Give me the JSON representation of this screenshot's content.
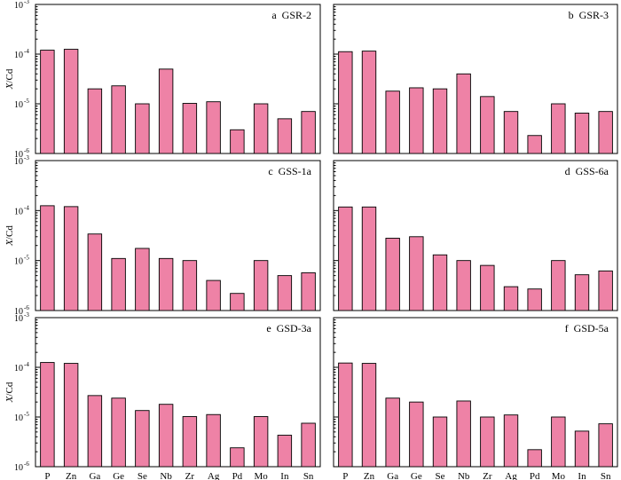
{
  "figure": {
    "ylabel": "X/Cd",
    "ytick_labels": [
      "10",
      "10",
      "10",
      "10"
    ],
    "ytick_exponents": [
      "-6",
      "-5",
      "-4",
      "-3"
    ]
  },
  "chart_data": [
    {
      "type": "bar",
      "title": "a  GSR-2",
      "categories": [
        "P",
        "Zn",
        "Ga",
        "Ge",
        "Se",
        "Nb",
        "Zr",
        "Ag",
        "Pd",
        "Mo",
        "In",
        "Sn"
      ],
      "values": [
        0.00012,
        0.000125,
        2e-05,
        2.3e-05,
        1e-05,
        5e-05,
        1.02e-05,
        1.1e-05,
        3e-06,
        1e-05,
        5e-06,
        7e-06
      ],
      "ylabel": "X/Cd",
      "ylim": [
        1e-06,
        0.001
      ],
      "yscale": "log"
    },
    {
      "type": "bar",
      "title": "b  GSR-3",
      "categories": [
        "P",
        "Zn",
        "Ga",
        "Ge",
        "Se",
        "Nb",
        "Zr",
        "Ag",
        "Pd",
        "Mo",
        "In",
        "Sn"
      ],
      "values": [
        0.000112,
        0.000115,
        1.8e-05,
        2.1e-05,
        2e-05,
        4e-05,
        1.4e-05,
        7e-06,
        2.3e-06,
        1e-05,
        6.5e-06,
        7e-06
      ],
      "ylabel": "X/Cd",
      "ylim": [
        1e-06,
        0.001
      ],
      "yscale": "log"
    },
    {
      "type": "bar",
      "title": "c  GSS-1a",
      "categories": [
        "P",
        "Zn",
        "Ga",
        "Ge",
        "Se",
        "Nb",
        "Zr",
        "Ag",
        "Pd",
        "Mo",
        "In",
        "Sn"
      ],
      "values": [
        0.000125,
        0.00012,
        3.4e-05,
        1.1e-05,
        1.75e-05,
        1.1e-05,
        1e-05,
        4e-06,
        2.2e-06,
        1e-05,
        5e-06,
        5.7e-06
      ],
      "ylabel": "X/Cd",
      "ylim": [
        1e-06,
        0.001
      ],
      "yscale": "log"
    },
    {
      "type": "bar",
      "title": "d  GSS-6a",
      "categories": [
        "P",
        "Zn",
        "Ga",
        "Ge",
        "Se",
        "Nb",
        "Zr",
        "Ag",
        "Pd",
        "Mo",
        "In",
        "Sn"
      ],
      "values": [
        0.000118,
        0.000118,
        2.8e-05,
        3e-05,
        1.3e-05,
        1e-05,
        8e-06,
        3e-06,
        2.7e-06,
        1e-05,
        5.2e-06,
        6.2e-06
      ],
      "ylabel": "X/Cd",
      "ylim": [
        1e-06,
        0.001
      ],
      "yscale": "log"
    },
    {
      "type": "bar",
      "title": "e  GSD-3a",
      "categories": [
        "P",
        "Zn",
        "Ga",
        "Ge",
        "Se",
        "Nb",
        "Zr",
        "Ag",
        "Pd",
        "Mo",
        "In",
        "Sn"
      ],
      "values": [
        0.000125,
        0.00012,
        2.7e-05,
        2.4e-05,
        1.35e-05,
        1.8e-05,
        1.02e-05,
        1.12e-05,
        2.4e-06,
        1.02e-05,
        4.3e-06,
        7.5e-06
      ],
      "ylabel": "X/Cd",
      "ylim": [
        1e-06,
        0.001
      ],
      "yscale": "log"
    },
    {
      "type": "bar",
      "title": "f  GSD-5a",
      "categories": [
        "P",
        "Zn",
        "Ga",
        "Ge",
        "Se",
        "Nb",
        "Zr",
        "Ag",
        "Pd",
        "Mo",
        "In",
        "Sn"
      ],
      "values": [
        0.000122,
        0.00012,
        2.4e-05,
        2e-05,
        1e-05,
        2.1e-05,
        1e-05,
        1.1e-05,
        2.2e-06,
        1e-05,
        5.2e-06,
        7.3e-06
      ],
      "ylabel": "X/Cd",
      "ylim": [
        1e-06,
        0.001
      ],
      "yscale": "log"
    }
  ]
}
